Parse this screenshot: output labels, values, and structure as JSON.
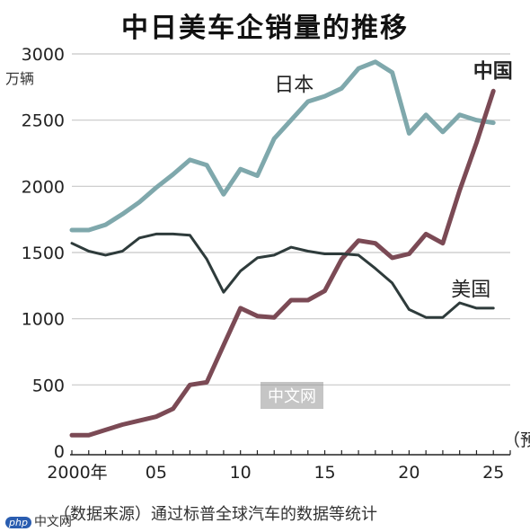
{
  "title": "中日美车企销量的推移",
  "unit_label": "万辆",
  "source_note": "（数据来源）通过标普全球汽车的数据等统计",
  "watermark_left": "中文网",
  "watermark_left_logo": "php",
  "watermark_center": "中文网",
  "chart_data": {
    "type": "line",
    "title": "中日美车企销量的推移",
    "ylabel": "万辆",
    "xlabel": "",
    "ylim": [
      0,
      3000
    ],
    "xlim": [
      2000,
      2026
    ],
    "yticks": [
      0,
      500,
      1000,
      1500,
      2000,
      2500,
      3000
    ],
    "xtick_labels": [
      {
        "x": 2000,
        "label": "2000年"
      },
      {
        "x": 2005,
        "label": "05"
      },
      {
        "x": 2010,
        "label": "10"
      },
      {
        "x": 2015,
        "label": "15"
      },
      {
        "x": 2020,
        "label": "20"
      },
      {
        "x": 2025,
        "label": "25"
      }
    ],
    "forecast_note": "（预",
    "grid": "horizontal",
    "series": [
      {
        "name": "日本",
        "color": "#7fa8ac",
        "x": [
          2000,
          2001,
          2002,
          2003,
          2004,
          2005,
          2006,
          2007,
          2008,
          2009,
          2010,
          2011,
          2012,
          2013,
          2014,
          2015,
          2016,
          2017,
          2018,
          2019,
          2020,
          2021,
          2022,
          2023,
          2024,
          2025
        ],
        "values": [
          1670,
          1670,
          1710,
          1790,
          1880,
          1990,
          2090,
          2200,
          2160,
          1940,
          2130,
          2080,
          2360,
          2500,
          2640,
          2680,
          2740,
          2890,
          2940,
          2860,
          2400,
          2540,
          2410,
          2540,
          2500,
          2480
        ]
      },
      {
        "name": "中国",
        "color": "#7b4a55",
        "x": [
          2000,
          2001,
          2002,
          2003,
          2004,
          2005,
          2006,
          2007,
          2008,
          2009,
          2010,
          2011,
          2012,
          2013,
          2014,
          2015,
          2016,
          2017,
          2018,
          2019,
          2020,
          2021,
          2022,
          2023,
          2024,
          2025
        ],
        "values": [
          120,
          120,
          160,
          200,
          230,
          260,
          320,
          500,
          520,
          800,
          1080,
          1020,
          1010,
          1140,
          1140,
          1210,
          1450,
          1590,
          1570,
          1460,
          1490,
          1640,
          1570,
          1970,
          2330,
          2720
        ]
      },
      {
        "name": "美国",
        "color": "#2e3b3b",
        "x": [
          2000,
          2001,
          2002,
          2003,
          2004,
          2005,
          2006,
          2007,
          2008,
          2009,
          2010,
          2011,
          2012,
          2013,
          2014,
          2015,
          2016,
          2017,
          2018,
          2019,
          2020,
          2021,
          2022,
          2023,
          2024,
          2025
        ],
        "values": [
          1570,
          1510,
          1480,
          1510,
          1610,
          1640,
          1640,
          1630,
          1450,
          1200,
          1360,
          1460,
          1480,
          1540,
          1510,
          1490,
          1490,
          1480,
          1380,
          1270,
          1070,
          1010,
          1010,
          1120,
          1080,
          1080
        ]
      }
    ]
  }
}
